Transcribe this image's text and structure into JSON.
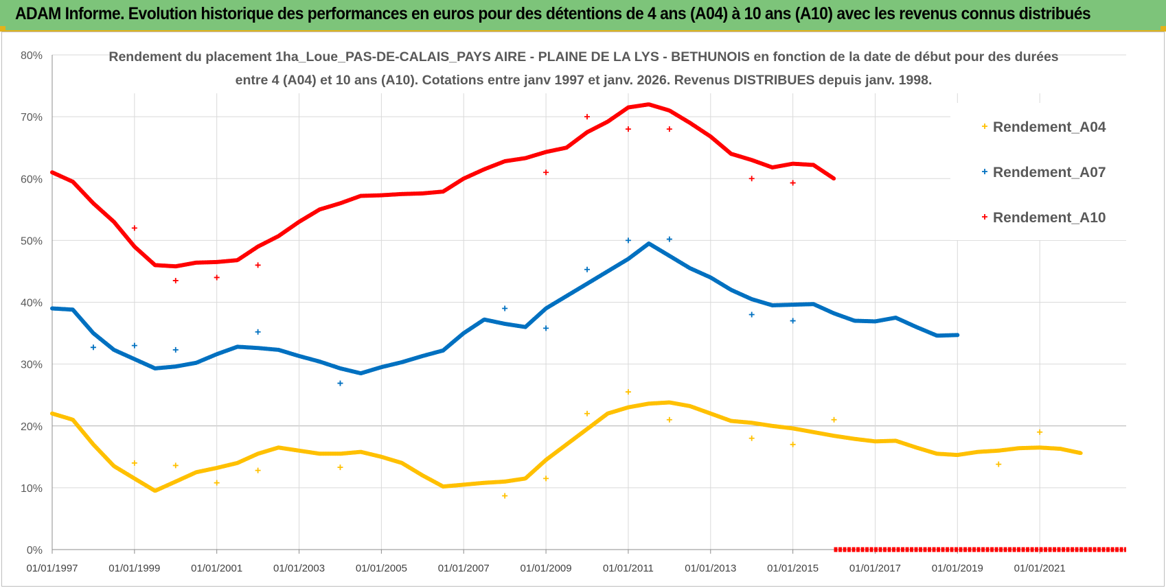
{
  "header": {
    "title": "ADAM Informe. Evolution historique des performances en euros pour des détentions de 4 ans (A04) à 10 ans (A10) avec les revenus connus distribués"
  },
  "colors": {
    "banner": "#7dc47a",
    "accent": "#e4b21a",
    "A04": "#ffc000",
    "A07": "#0070c0",
    "A10": "#ff0000"
  },
  "chart_data": {
    "type": "scatter",
    "title_lines": [
      "Rendement du placement 1ha_Loue_PAS-DE-CALAIS_PAYS AIRE - PLAINE DE LA LYS - BETHUNOIS en fonction de la date de début pour des durées",
      "entre 4 (A04) et 10 ans (A10). Cotations entre janv 1997 et janv. 2026. Revenus DISTRIBUES depuis janv. 1998."
    ],
    "xlabel": "",
    "ylabel": "",
    "x_range": [
      1997,
      2023.1
    ],
    "ylim": [
      0,
      80
    ],
    "y_ticks": [
      "0%",
      "10%",
      "20%",
      "30%",
      "40%",
      "50%",
      "60%",
      "70%",
      "80%"
    ],
    "x_tick_labels": [
      "01/01/1997",
      "01/01/1999",
      "01/01/2001",
      "01/01/2003",
      "01/01/2005",
      "01/01/2007",
      "01/01/2009",
      "01/01/2011",
      "01/01/2013",
      "01/01/2015",
      "01/01/2017",
      "01/01/2019",
      "01/01/2021"
    ],
    "x_tick_years": [
      1997,
      1999,
      2001,
      2003,
      2005,
      2007,
      2009,
      2011,
      2013,
      2015,
      2017,
      2019,
      2021
    ],
    "grid": true,
    "legend_position": "right",
    "series": [
      {
        "name": "Rendement_A04",
        "key": "A04",
        "x": [
          1997.0,
          1997.5,
          1998.0,
          1998.5,
          1999.0,
          1999.5,
          2000.0,
          2000.5,
          2001.0,
          2001.5,
          2002.0,
          2002.5,
          2003.0,
          2003.5,
          2004.0,
          2004.5,
          2005.0,
          2005.5,
          2006.0,
          2006.5,
          2007.0,
          2007.5,
          2008.0,
          2008.5,
          2009.0,
          2009.5,
          2010.0,
          2010.5,
          2011.0,
          2011.5,
          2012.0,
          2012.5,
          2013.0,
          2013.5,
          2014.0,
          2014.5,
          2015.0,
          2015.5,
          2016.0,
          2016.5,
          2017.0,
          2017.5,
          2018.0,
          2018.5,
          2019.0,
          2019.5,
          2020.0,
          2020.5,
          2021.0,
          2021.5,
          2022.0
        ],
        "values": [
          22,
          21,
          17,
          13.5,
          11.5,
          9.5,
          11,
          12.5,
          13.2,
          14,
          15.5,
          16.5,
          16,
          15.5,
          15.5,
          15.8,
          15,
          14,
          12,
          10.2,
          10.5,
          10.8,
          11,
          11.5,
          14.5,
          17,
          19.5,
          22,
          23,
          23.6,
          23.8,
          23.2,
          22,
          20.8,
          20.5,
          20,
          19.6,
          19,
          18.4,
          17.9,
          17.5,
          17.6,
          16.5,
          15.5,
          15.3,
          15.8,
          16,
          16.4,
          16.5,
          16.3,
          15.6
        ],
        "outliers_x": [
          1999.0,
          2000.0,
          2001.0,
          2002.0,
          2004.0,
          2008.0,
          2009.0,
          2010.0,
          2011.0,
          2012.0,
          2014.0,
          2015.0,
          2016.0,
          2020.0,
          2021.0
        ],
        "outliers_y": [
          14,
          13.6,
          10.8,
          12.8,
          13.3,
          8.7,
          11.5,
          22,
          25.5,
          21,
          18,
          17,
          21,
          13.8,
          19
        ]
      },
      {
        "name": "Rendement_A07",
        "key": "A07",
        "x": [
          1997.0,
          1997.5,
          1998.0,
          1998.5,
          1999.0,
          1999.5,
          2000.0,
          2000.5,
          2001.0,
          2001.5,
          2002.0,
          2002.5,
          2003.0,
          2003.5,
          2004.0,
          2004.5,
          2005.0,
          2005.5,
          2006.0,
          2006.5,
          2007.0,
          2007.5,
          2008.0,
          2008.5,
          2009.0,
          2009.5,
          2010.0,
          2010.5,
          2011.0,
          2011.5,
          2012.0,
          2012.5,
          2013.0,
          2013.5,
          2014.0,
          2014.5,
          2015.0,
          2015.5,
          2016.0,
          2016.5,
          2017.0,
          2017.5,
          2018.0,
          2018.5,
          2019.0
        ],
        "values": [
          39,
          38.8,
          35,
          32.3,
          30.8,
          29.3,
          29.6,
          30.2,
          31.6,
          32.8,
          32.6,
          32.3,
          31.3,
          30.4,
          29.3,
          28.5,
          29.5,
          30.3,
          31.3,
          32.2,
          35,
          37.2,
          36.5,
          36,
          39,
          41,
          43,
          45,
          47,
          49.5,
          47.5,
          45.5,
          44,
          42,
          40.5,
          39.5,
          39.6,
          39.7,
          38.2,
          37,
          36.9,
          37.5,
          36,
          34.6,
          34.7
        ],
        "outliers_x": [
          1998.0,
          1999.0,
          2000.0,
          2002.0,
          2004.0,
          2008.0,
          2009.0,
          2010.0,
          2011.0,
          2012.0,
          2014.0,
          2015.0
        ],
        "outliers_y": [
          32.7,
          33,
          32.3,
          35.2,
          26.9,
          39,
          35.8,
          45.3,
          50,
          50.2,
          38,
          37
        ]
      },
      {
        "name": "Rendement_A10",
        "key": "A10",
        "x": [
          1997.0,
          1997.5,
          1998.0,
          1998.5,
          1999.0,
          1999.5,
          2000.0,
          2000.5,
          2001.0,
          2001.5,
          2002.0,
          2002.5,
          2003.0,
          2003.5,
          2004.0,
          2004.5,
          2005.0,
          2005.5,
          2006.0,
          2006.5,
          2007.0,
          2007.5,
          2008.0,
          2008.5,
          2009.0,
          2009.5,
          2010.0,
          2010.5,
          2011.0,
          2011.5,
          2012.0,
          2012.5,
          2013.0,
          2013.5,
          2014.0,
          2014.5,
          2015.0,
          2015.5,
          2016.0
        ],
        "values": [
          61,
          59.5,
          56,
          53,
          49,
          46,
          45.8,
          46.4,
          46.5,
          46.8,
          49,
          50.7,
          53,
          55,
          56,
          57.2,
          57.3,
          57.5,
          57.6,
          57.9,
          60,
          61.5,
          62.8,
          63.3,
          64.3,
          65,
          67.5,
          69.2,
          71.5,
          72,
          71,
          69,
          66.8,
          64,
          63,
          61.8,
          62.4,
          62.2,
          60
        ],
        "outliers_x": [
          1999.0,
          2000.0,
          2001.0,
          2002.0,
          2009.0,
          2010.0,
          2011.0,
          2012.0,
          2014.0,
          2015.0
        ],
        "outliers_y": [
          52,
          43.5,
          44,
          46,
          61,
          70,
          68,
          68,
          60,
          59.3
        ],
        "zero_band_x": [
          2016.0,
          2023.1
        ],
        "zero_band_value": 0
      }
    ]
  }
}
